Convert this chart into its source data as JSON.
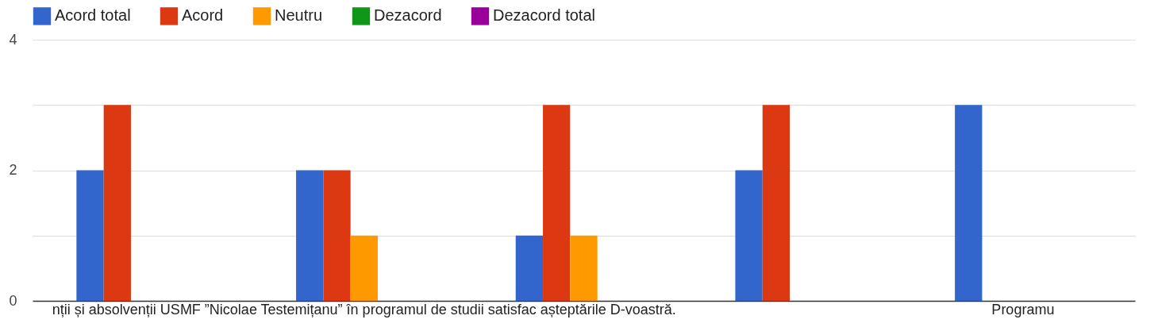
{
  "chart_data": {
    "type": "bar",
    "categories": [
      null,
      "nții și absolvenții USMF ”Nicolae Testemițanu” în programul de studii satisfac așteptările D-voastră.",
      null,
      null,
      "Programu"
    ],
    "series": [
      {
        "name": "Acord total",
        "color": "#3366cc",
        "values": [
          2,
          2,
          1,
          2,
          3
        ]
      },
      {
        "name": "Acord",
        "color": "#dc3912",
        "values": [
          3,
          2,
          3,
          3,
          null
        ]
      },
      {
        "name": "Neutru",
        "color": "#ff9900",
        "values": [
          0,
          1,
          1,
          0,
          null
        ]
      },
      {
        "name": "Dezacord",
        "color": "#109618",
        "values": [
          0,
          0,
          0,
          0,
          null
        ]
      },
      {
        "name": "Dezacord total",
        "color": "#990099",
        "values": [
          0,
          0,
          0,
          0,
          null
        ]
      }
    ],
    "ylim": [
      0,
      4
    ],
    "yticks": [
      0,
      {
        "value": 1,
        "label": null
      },
      2,
      {
        "value": 3,
        "label": null
      },
      4
    ],
    "grid": "y",
    "legend": "top left"
  }
}
